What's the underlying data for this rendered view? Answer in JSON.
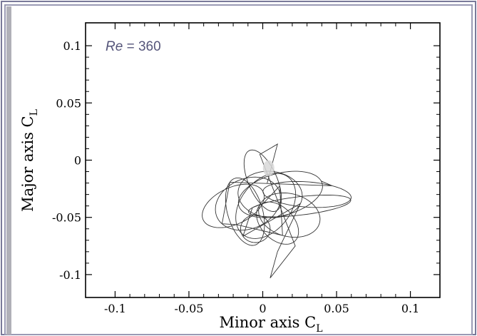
{
  "chart_data": {
    "type": "line",
    "annotation_text": "Re = 360",
    "annotation_italic_part": "Re",
    "annotation_rest": " = 360",
    "xlabel_main": "Minor axis C",
    "xlabel_sub": "L",
    "ylabel_main": "Major axis C",
    "ylabel_sub": "L",
    "xlim": [
      -0.12,
      0.12
    ],
    "ylim": [
      -0.12,
      0.12
    ],
    "xticks": [
      {
        "value": -0.1,
        "label": "-0.1"
      },
      {
        "value": -0.05,
        "label": "-0.05"
      },
      {
        "value": 0,
        "label": "0"
      },
      {
        "value": 0.05,
        "label": "0.05"
      },
      {
        "value": 0.1,
        "label": "0.1"
      }
    ],
    "yticks": [
      {
        "value": 0.1,
        "label": "0.1"
      },
      {
        "value": 0.05,
        "label": "0.05"
      },
      {
        "value": 0,
        "label": "0"
      },
      {
        "value": -0.05,
        "label": "-0.05"
      },
      {
        "value": -0.1,
        "label": "-0.1"
      }
    ],
    "grid": false,
    "series": [
      {
        "line_color": "#333333",
        "highlight_color": "#d8d8d8",
        "approx_center": [
          0.003,
          -0.035
        ],
        "approx_x_range": [
          -0.04,
          0.063
        ],
        "approx_y_range": [
          -0.103,
          0.014
        ]
      }
    ]
  },
  "colors": {
    "frame_border": "#7a7a9a",
    "frame_bg": "#f4f4f8",
    "annotation": "#55557a",
    "axis": "#000000"
  }
}
